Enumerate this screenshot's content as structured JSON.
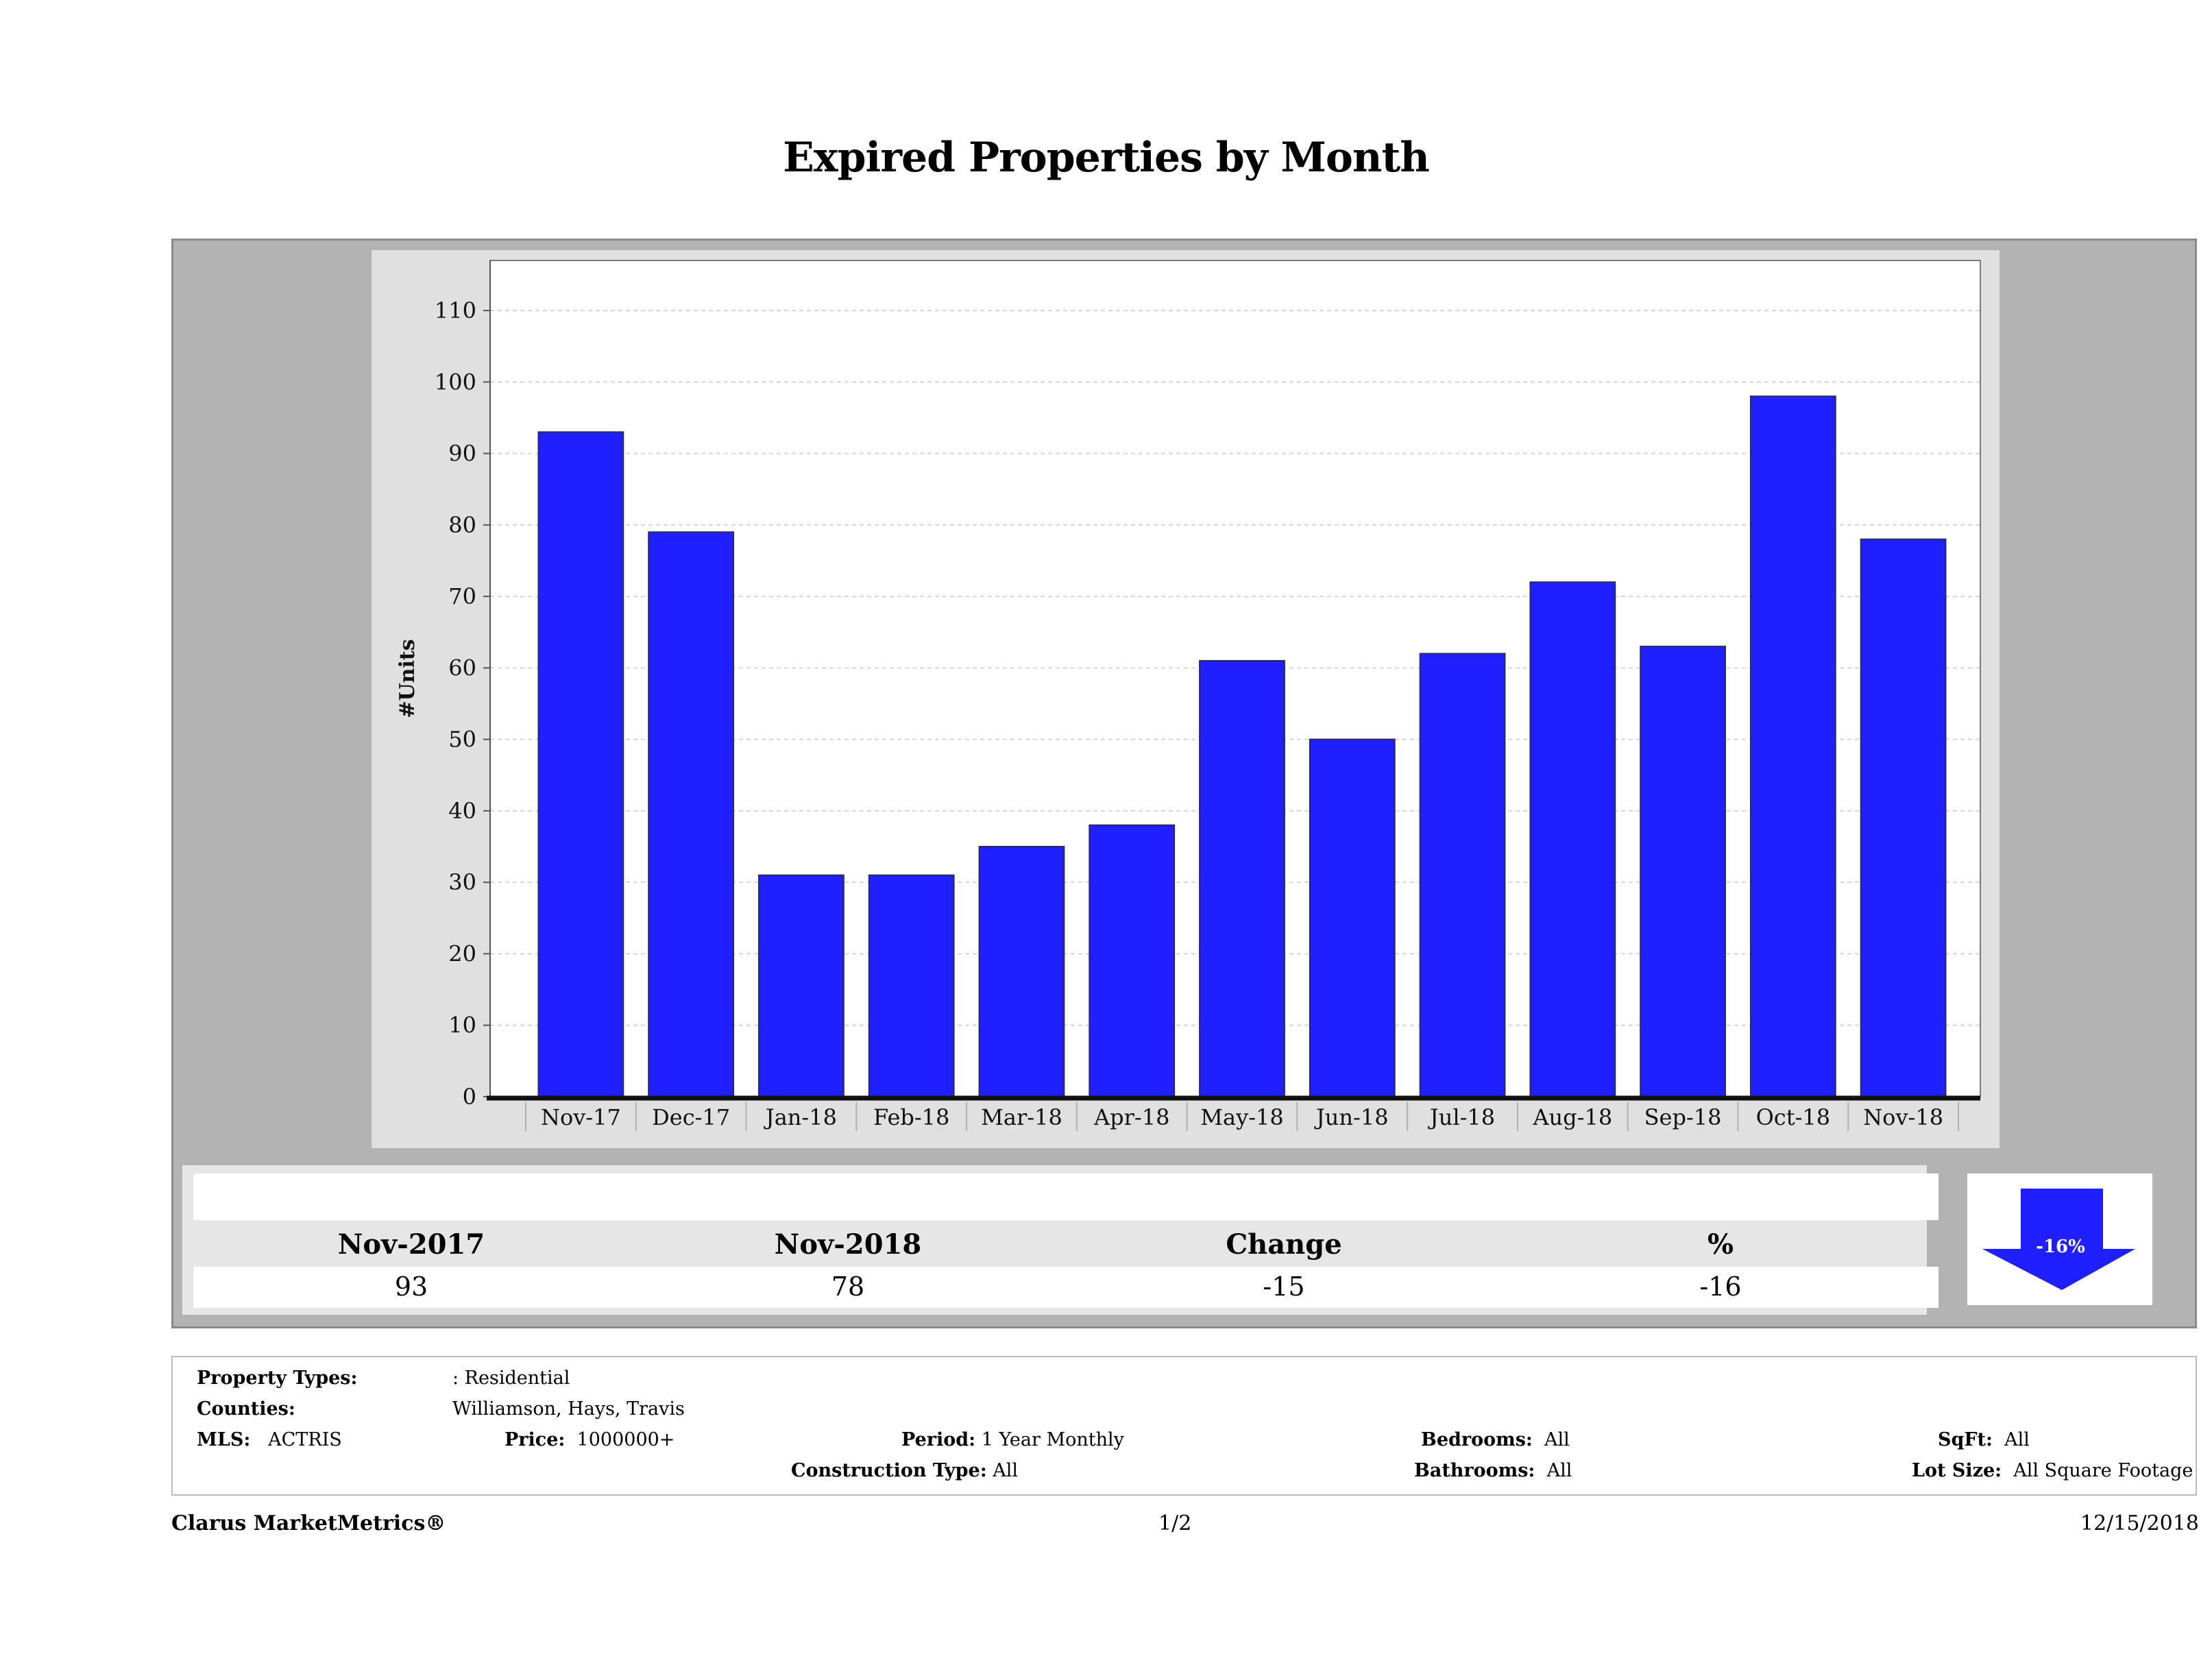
{
  "title": "Expired Properties by Month",
  "chart_data": {
    "type": "bar",
    "title": "Expired Properties by Month",
    "categories": [
      "Nov-17",
      "Dec-17",
      "Jan-18",
      "Feb-18",
      "Mar-18",
      "Apr-18",
      "May-18",
      "Jun-18",
      "Jul-18",
      "Aug-18",
      "Sep-18",
      "Oct-18",
      "Nov-18"
    ],
    "values": [
      93,
      79,
      31,
      31,
      35,
      38,
      61,
      50,
      62,
      72,
      63,
      98,
      78
    ],
    "ylabel": "#Units",
    "xlabel": "",
    "ylim": [
      0,
      117
    ],
    "yticks": [
      0,
      10,
      20,
      30,
      40,
      50,
      60,
      70,
      80,
      90,
      100,
      110
    ],
    "bar_color": "#1f1fff",
    "grid": true
  },
  "summary": {
    "headers": [
      "Nov-2017",
      "Nov-2018",
      "Change",
      "%"
    ],
    "values": [
      "93",
      "78",
      "-15",
      "-16"
    ],
    "badge": "-16%",
    "badge_color": "#1f1fff",
    "badge_icon": "down-arrow-icon"
  },
  "criteria": {
    "property_types_label": "Property Types:",
    "property_types_value": ": Residential",
    "counties_label": "Counties:",
    "counties_value": "Williamson, Hays, Travis",
    "mls_label": "MLS:",
    "mls_value": "ACTRIS",
    "price_label": "Price:",
    "price_value": "1000000+",
    "period_label": "Period:",
    "period_value": "1 Year Monthly",
    "construction_label": "Construction Type:",
    "construction_value": "All",
    "bedrooms_label": "Bedrooms:",
    "bedrooms_value": "All",
    "bathrooms_label": "Bathrooms:",
    "bathrooms_value": "All",
    "sqft_label": "SqFt:",
    "sqft_value": "All",
    "lotsize_label": "Lot Size:",
    "lotsize_value": "All Square Footage"
  },
  "footer": {
    "brand": "Clarus MarketMetrics®",
    "page": "1/2",
    "date": "12/15/2018"
  }
}
